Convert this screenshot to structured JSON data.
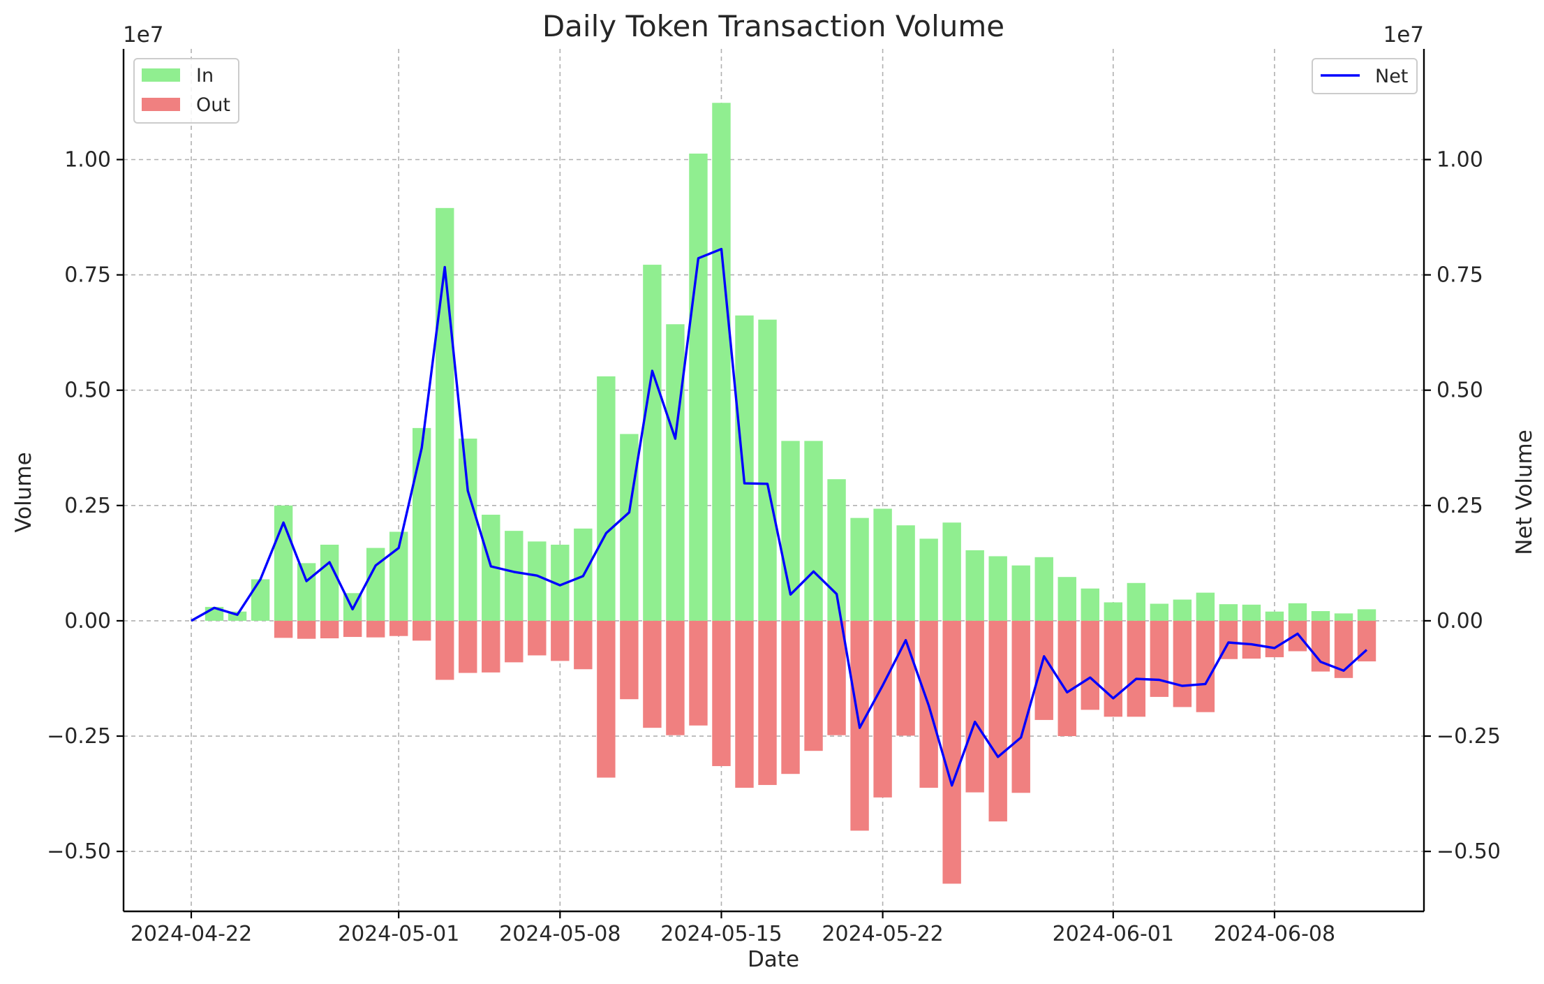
{
  "chart_data": {
    "type": "bar",
    "title": "Daily Token Transaction Volume",
    "xlabel": "Date",
    "ylabel": "Volume",
    "y2label": "Net Volume",
    "scale_note_left": "1e7",
    "scale_note_right": "1e7",
    "grid": true,
    "ylim": [
      -0.63,
      1.24
    ],
    "y2lim": [
      -0.63,
      1.24
    ],
    "yticks": [
      -0.5,
      -0.25,
      0.0,
      0.25,
      0.5,
      0.75,
      1.0
    ],
    "ytick_labels": [
      "−0.50",
      "−0.25",
      "0.00",
      "0.25",
      "0.50",
      "0.75",
      "1.00"
    ],
    "xticks": [
      {
        "date": "2024-04-22",
        "label": "2024-04-22"
      },
      {
        "date": "2024-05-01",
        "label": "2024-05-01"
      },
      {
        "date": "2024-05-08",
        "label": "2024-05-08"
      },
      {
        "date": "2024-05-15",
        "label": "2024-05-15"
      },
      {
        "date": "2024-05-22",
        "label": "2024-05-22"
      },
      {
        "date": "2024-06-01",
        "label": "2024-06-01"
      },
      {
        "date": "2024-06-08",
        "label": "2024-06-08"
      }
    ],
    "x": [
      "2024-04-22",
      "2024-04-23",
      "2024-04-24",
      "2024-04-25",
      "2024-04-26",
      "2024-04-27",
      "2024-04-28",
      "2024-04-29",
      "2024-04-30",
      "2024-05-01",
      "2024-05-02",
      "2024-05-03",
      "2024-05-04",
      "2024-05-05",
      "2024-05-06",
      "2024-05-07",
      "2024-05-08",
      "2024-05-09",
      "2024-05-10",
      "2024-05-11",
      "2024-05-12",
      "2024-05-13",
      "2024-05-14",
      "2024-05-15",
      "2024-05-16",
      "2024-05-17",
      "2024-05-18",
      "2024-05-19",
      "2024-05-20",
      "2024-05-21",
      "2024-05-22",
      "2024-05-23",
      "2024-05-24",
      "2024-05-25",
      "2024-05-26",
      "2024-05-27",
      "2024-05-28",
      "2024-05-29",
      "2024-05-30",
      "2024-05-31",
      "2024-06-01",
      "2024-06-02",
      "2024-06-03",
      "2024-06-04",
      "2024-06-05",
      "2024-06-06",
      "2024-06-07",
      "2024-06-08",
      "2024-06-09",
      "2024-06-10",
      "2024-06-11",
      "2024-06-12"
    ],
    "series": [
      {
        "name": "In",
        "kind": "bar",
        "color": "#90ee90",
        "values": [
          0.0,
          0.03,
          0.02,
          0.09,
          0.25,
          0.125,
          0.165,
          0.06,
          0.158,
          0.193,
          0.418,
          0.895,
          0.395,
          0.23,
          0.195,
          0.172,
          0.165,
          0.2,
          0.53,
          0.405,
          0.772,
          0.643,
          1.013,
          1.123,
          0.662,
          0.653,
          0.39,
          0.39,
          0.307,
          0.223,
          0.243,
          0.207,
          0.178,
          0.213,
          0.153,
          0.14,
          0.12,
          0.138,
          0.095,
          0.07,
          0.04,
          0.082,
          0.037,
          0.046,
          0.061,
          0.036,
          0.035,
          0.02,
          0.038,
          0.021,
          0.016,
          0.025
        ]
      },
      {
        "name": "Out",
        "kind": "bar",
        "color": "#f08080",
        "values": [
          0.0,
          0.0,
          0.0,
          0.0,
          -0.037,
          -0.039,
          -0.038,
          -0.035,
          -0.036,
          -0.033,
          -0.043,
          -0.128,
          -0.113,
          -0.112,
          -0.09,
          -0.075,
          -0.087,
          -0.105,
          -0.34,
          -0.17,
          -0.232,
          -0.248,
          -0.227,
          -0.315,
          -0.362,
          -0.356,
          -0.332,
          -0.282,
          -0.248,
          -0.455,
          -0.383,
          -0.249,
          -0.362,
          -0.57,
          -0.372,
          -0.435,
          -0.373,
          -0.215,
          -0.25,
          -0.193,
          -0.208,
          -0.208,
          -0.165,
          -0.187,
          -0.198,
          -0.083,
          -0.082,
          -0.079,
          -0.066,
          -0.11,
          -0.124,
          -0.088
        ]
      },
      {
        "name": "Net",
        "kind": "line",
        "axis": "right",
        "color": "#0000ff",
        "values": [
          0.0,
          0.028,
          0.013,
          0.09,
          0.213,
          0.086,
          0.127,
          0.025,
          0.12,
          0.158,
          0.375,
          0.767,
          0.282,
          0.118,
          0.106,
          0.098,
          0.077,
          0.097,
          0.19,
          0.235,
          0.542,
          0.395,
          0.786,
          0.806,
          0.298,
          0.297,
          0.057,
          0.107,
          0.058,
          -0.232,
          -0.14,
          -0.042,
          -0.184,
          -0.357,
          -0.219,
          -0.295,
          -0.253,
          -0.077,
          -0.155,
          -0.123,
          -0.168,
          -0.126,
          -0.128,
          -0.141,
          -0.137,
          -0.047,
          -0.051,
          -0.059,
          -0.028,
          -0.089,
          -0.108,
          -0.063
        ]
      }
    ],
    "legends": [
      {
        "position": "upper-left",
        "entries": [
          "In",
          "Out"
        ]
      },
      {
        "position": "upper-right",
        "entries": [
          "Net"
        ]
      }
    ]
  }
}
